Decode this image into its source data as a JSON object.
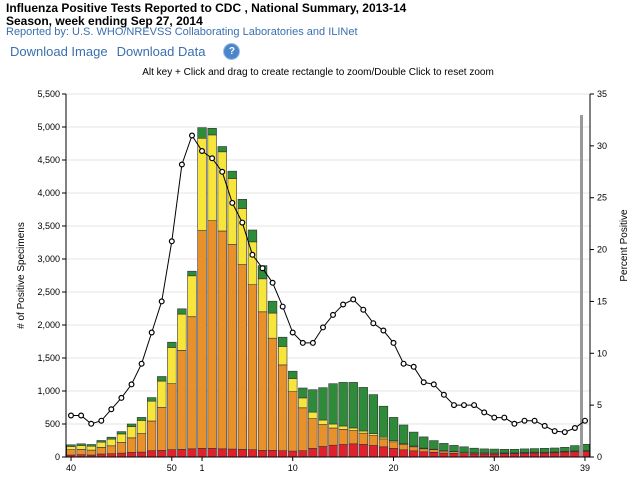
{
  "header": {
    "title": "Influenza Positive Tests Reported to CDC , National Summary, 2013-14 Season, week ending Sep 27, 2014",
    "subtitle": "Reported by: U.S. WHO/NREVSS Collaborating Laboratories and ILINet",
    "download_image": "Download Image",
    "download_data": "Download Data",
    "help_glyph": "?",
    "hint": "Alt key + Click and drag to create rectangle to zoom/Double Click to reset zoom"
  },
  "colors": {
    "influenza_a": "#e8902a",
    "influenza_b": "#2e8b3a",
    "a_h1n1": "#f7e53b",
    "a_h3": "#e0202a",
    "percent_line": "#000000"
  },
  "chart_data": {
    "type": "bar",
    "stacked": true,
    "categories": [
      "40",
      "41",
      "42",
      "43",
      "44",
      "45",
      "46",
      "47",
      "48",
      "49",
      "50",
      "51",
      "52",
      "1",
      "2",
      "3",
      "4",
      "5",
      "6",
      "7",
      "8",
      "9",
      "10",
      "11",
      "12",
      "13",
      "14",
      "15",
      "16",
      "17",
      "18",
      "19",
      "20",
      "21",
      "22",
      "23",
      "24",
      "25",
      "26",
      "27",
      "28",
      "29",
      "30",
      "31",
      "32",
      "33",
      "34",
      "35",
      "36",
      "37",
      "38",
      "39"
    ],
    "x_tick_labels": [
      "40",
      "50",
      "1",
      "10",
      "20",
      "30",
      "39"
    ],
    "x_tick_categories": [
      "40",
      "50",
      "1",
      "10",
      "20",
      "30",
      "39"
    ],
    "ylabel": "# of Positive Specimens",
    "y2label": "Percent Positive",
    "ylim": [
      0,
      5500
    ],
    "y_ticks": [
      "0",
      "500",
      "1,000",
      "1,500",
      "2,000",
      "2,500",
      "3,000",
      "3,500",
      "4,000",
      "4,500",
      "5,000",
      "5,500"
    ],
    "y2lim": [
      0,
      35
    ],
    "y2_ticks": [
      "0",
      "5",
      "10",
      "15",
      "20",
      "25",
      "30",
      "35"
    ],
    "grid": true,
    "series": [
      {
        "values": [
          30,
          35,
          30,
          45,
          50,
          60,
          70,
          75,
          95,
          100,
          110,
          115,
          125,
          130,
          130,
          125,
          120,
          115,
          110,
          100,
          100,
          95,
          90,
          95,
          130,
          160,
          180,
          190,
          200,
          190,
          175,
          155,
          130,
          110,
          95,
          80,
          70,
          60,
          55,
          50,
          45,
          45,
          45,
          50,
          50,
          55,
          60,
          60,
          65,
          75,
          80,
          85
        ]
      },
      {
        "values": [
          80,
          80,
          75,
          100,
          120,
          160,
          220,
          280,
          450,
          650,
          1000,
          1500,
          2000,
          3300,
          3450,
          3300,
          3100,
          2800,
          2500,
          2100,
          1700,
          1300,
          900,
          650,
          450,
          330,
          260,
          230,
          200,
          170,
          150,
          120,
          100,
          80,
          60,
          45,
          40,
          30,
          25,
          20,
          15,
          15,
          12,
          10,
          10,
          10,
          10,
          10,
          10,
          10,
          10,
          10
        ]
      },
      {
        "values": [
          50,
          60,
          60,
          80,
          100,
          130,
          170,
          200,
          300,
          400,
          550,
          550,
          620,
          1400,
          1300,
          1200,
          1000,
          850,
          650,
          500,
          380,
          280,
          200,
          150,
          100,
          70,
          60,
          50,
          40,
          35,
          30,
          25,
          20,
          15,
          12,
          10,
          8,
          6,
          5,
          4,
          3,
          3,
          2,
          2,
          2,
          2,
          2,
          2,
          2,
          2,
          2,
          2
        ]
      },
      {
        "values": [
          25,
          25,
          25,
          25,
          30,
          35,
          40,
          45,
          55,
          70,
          80,
          80,
          70,
          160,
          100,
          80,
          110,
          140,
          180,
          200,
          180,
          140,
          110,
          150,
          340,
          490,
          610,
          660,
          690,
          660,
          590,
          470,
          350,
          280,
          210,
          170,
          130,
          110,
          90,
          80,
          70,
          60,
          60,
          55,
          55,
          55,
          55,
          60,
          60,
          60,
          80,
          95
        ]
      }
    ],
    "percent_positive": [
      4.0,
      4.0,
      3.2,
      3.5,
      4.6,
      5.7,
      7.0,
      9.0,
      12.0,
      15.0,
      20.8,
      28.2,
      31.0,
      29.5,
      28.8,
      27.5,
      24.5,
      22.6,
      19.5,
      18.2,
      16.8,
      14.5,
      12.0,
      11.0,
      11.0,
      12.5,
      13.7,
      14.7,
      15.2,
      14.2,
      12.9,
      12.2,
      11.0,
      9.0,
      8.7,
      7.2,
      7.0,
      6.0,
      5.0,
      5.0,
      5.0,
      4.3,
      3.8,
      3.8,
      3.2,
      3.5,
      3.5,
      3.0,
      2.5,
      2.4,
      2.8,
      3.5
    ]
  }
}
